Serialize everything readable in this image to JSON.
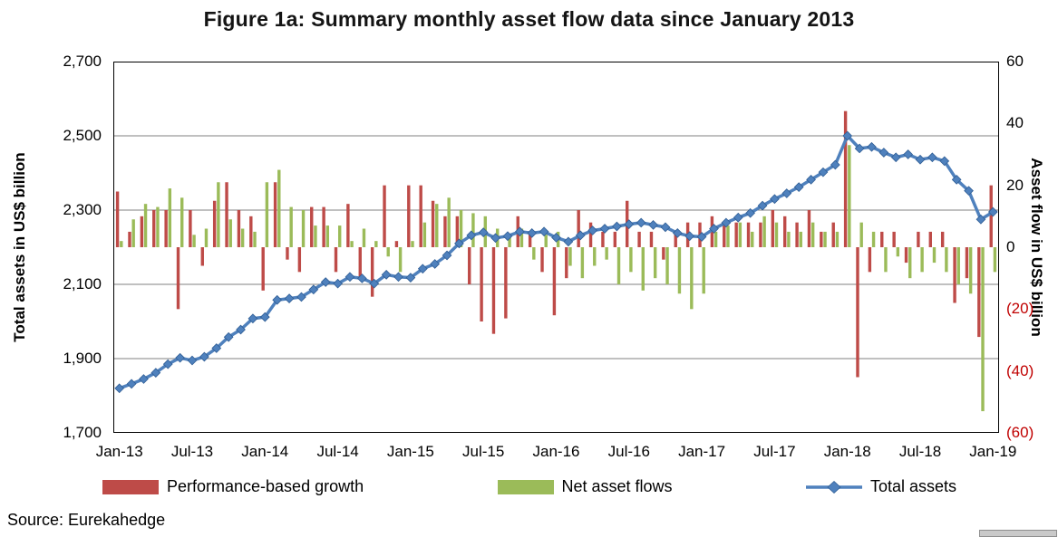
{
  "title": "Figure 1a: Summary monthly asset flow data since January 2013",
  "source": "Source: Eurekahedge",
  "left_axis": {
    "title": "Total assets in US$ billion",
    "ticks": [
      "2,700",
      "2,500",
      "2,300",
      "2,100",
      "1,900",
      "1,700"
    ]
  },
  "right_axis": {
    "title": "Asset flow in US$ billion",
    "ticks": [
      "60",
      "40",
      "20",
      "0",
      "(20)",
      "(40)",
      "(60)"
    ],
    "negative_color": "#C00000"
  },
  "x_axis": {
    "tick_every": 6,
    "tick_labels": [
      "Jan-13",
      "Jul-13",
      "Jan-14",
      "Jul-14",
      "Jan-15",
      "Jul-15",
      "Jan-16",
      "Jul-16",
      "Jan-17",
      "Jul-17",
      "Jan-18",
      "Jul-18",
      "Jan-19"
    ]
  },
  "legend": [
    {
      "label": "Performance-based growth",
      "color": "#BE4B48",
      "type": "bar"
    },
    {
      "label": "Net asset flows",
      "color": "#9BBB59",
      "type": "bar"
    },
    {
      "label": "Total assets",
      "color": "#4F81BD",
      "type": "line-diamond"
    }
  ],
  "chart_data": {
    "type": "bar",
    "subtype": "combo-dual-axis",
    "title": "Figure 1a: Summary monthly asset flow data since January 2013",
    "xlabel": "",
    "ylabel_left": "Total assets in US$ billion",
    "ylabel_right": "Asset flow in US$ billion",
    "left_ylim": [
      1700,
      2700
    ],
    "right_ylim": [
      -60,
      60
    ],
    "grid": true,
    "legend_position": "bottom",
    "x": [
      "Jan-13",
      "Feb-13",
      "Mar-13",
      "Apr-13",
      "May-13",
      "Jun-13",
      "Jul-13",
      "Aug-13",
      "Sep-13",
      "Oct-13",
      "Nov-13",
      "Dec-13",
      "Jan-14",
      "Feb-14",
      "Mar-14",
      "Apr-14",
      "May-14",
      "Jun-14",
      "Jul-14",
      "Aug-14",
      "Sep-14",
      "Oct-14",
      "Nov-14",
      "Dec-14",
      "Jan-15",
      "Feb-15",
      "Mar-15",
      "Apr-15",
      "May-15",
      "Jun-15",
      "Jul-15",
      "Aug-15",
      "Sep-15",
      "Oct-15",
      "Nov-15",
      "Dec-15",
      "Jan-16",
      "Feb-16",
      "Mar-16",
      "Apr-16",
      "May-16",
      "Jun-16",
      "Jul-16",
      "Aug-16",
      "Sep-16",
      "Oct-16",
      "Nov-16",
      "Dec-16",
      "Jan-17",
      "Feb-17",
      "Mar-17",
      "Apr-17",
      "May-17",
      "Jun-17",
      "Jul-17",
      "Aug-17",
      "Sep-17",
      "Oct-17",
      "Nov-17",
      "Dec-17",
      "Jan-18",
      "Feb-18",
      "Mar-18",
      "Apr-18",
      "May-18",
      "Jun-18",
      "Jul-18",
      "Aug-18",
      "Sep-18",
      "Oct-18",
      "Nov-18",
      "Dec-18",
      "Jan-19"
    ],
    "series": [
      {
        "name": "Performance-based growth",
        "type": "bar",
        "axis": "right",
        "color": "#BE4B48",
        "values": [
          18,
          5,
          10,
          12,
          12,
          -20,
          12,
          -6,
          15,
          21,
          12,
          10,
          -14,
          21,
          -4,
          -8,
          13,
          13,
          -8,
          14,
          -10,
          -16,
          20,
          2,
          20,
          20,
          15,
          10,
          10,
          -12,
          -24,
          -28,
          -23,
          10,
          5,
          -8,
          -22,
          -10,
          12,
          8,
          5,
          5,
          15,
          5,
          5,
          -4,
          5,
          8,
          8,
          10,
          8,
          8,
          8,
          8,
          12,
          10,
          8,
          12,
          5,
          8,
          44,
          -42,
          -8,
          5,
          5,
          -5,
          5,
          5,
          5,
          -18,
          -10,
          -29,
          20
        ]
      },
      {
        "name": "Net asset flows",
        "type": "bar",
        "axis": "right",
        "color": "#9BBB59",
        "values": [
          2,
          9,
          14,
          13,
          19,
          16,
          4,
          6,
          21,
          9,
          6,
          5,
          21,
          25,
          13,
          12,
          7,
          7,
          7,
          2,
          6,
          2,
          -3,
          -8,
          2,
          8,
          14,
          16,
          12,
          11,
          10,
          6,
          4,
          6,
          -4,
          4,
          5,
          -6,
          -10,
          -6,
          -4,
          -12,
          -8,
          -14,
          -10,
          -12,
          -15,
          -20,
          -15,
          5,
          7,
          8,
          5,
          10,
          8,
          5,
          5,
          8,
          5,
          5,
          33,
          8,
          5,
          -8,
          -3,
          -10,
          -8,
          -5,
          -8,
          -12,
          -15,
          -53,
          -8
        ]
      },
      {
        "name": "Total assets",
        "type": "line",
        "axis": "left",
        "color": "#4F81BD",
        "marker": "diamond",
        "marker_stroke": "#2F5D94",
        "values": [
          1820,
          1832,
          1845,
          1862,
          1885,
          1902,
          1895,
          1905,
          1928,
          1958,
          1978,
          2008,
          2012,
          2058,
          2062,
          2066,
          2086,
          2106,
          2102,
          2120,
          2116,
          2102,
          2126,
          2120,
          2118,
          2142,
          2155,
          2178,
          2210,
          2232,
          2240,
          2225,
          2230,
          2242,
          2238,
          2242,
          2226,
          2215,
          2232,
          2245,
          2250,
          2256,
          2262,
          2266,
          2260,
          2254,
          2238,
          2230,
          2228,
          2250,
          2266,
          2280,
          2292,
          2312,
          2330,
          2345,
          2362,
          2382,
          2402,
          2422,
          2500,
          2466,
          2470,
          2455,
          2442,
          2450,
          2436,
          2442,
          2432,
          2382,
          2352,
          2275,
          2295
        ]
      }
    ]
  }
}
